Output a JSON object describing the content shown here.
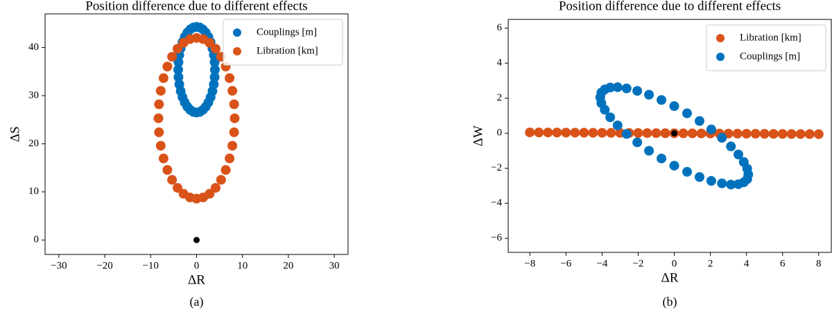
{
  "chart_data": [
    {
      "type": "scatter",
      "title": "Position difference due to different effects",
      "xlabel": "ΔR",
      "ylabel": "ΔS",
      "caption": "(a)",
      "xlim": [
        -33,
        33
      ],
      "ylim": [
        -3,
        47
      ],
      "xticks": [
        {
          "value": -30,
          "label": "−30"
        },
        {
          "value": -20,
          "label": "−20"
        },
        {
          "value": -10,
          "label": "−10"
        },
        0,
        10,
        20,
        30
      ],
      "yticks": [
        0,
        10,
        20,
        30,
        40
      ],
      "legend": "upper right",
      "series": [
        {
          "name": "Couplings [m]",
          "color": "#0072bd",
          "x": [
            4,
            3.94,
            3.76,
            3.46,
            3.06,
            2.57,
            2,
            1.37,
            0.7,
            0,
            -0.7,
            -1.37,
            -2,
            -2.57,
            -3.06,
            -3.46,
            -3.76,
            -3.94,
            -4,
            -3.94,
            -3.76,
            -3.46,
            -3.06,
            -2.57,
            -2,
            -1.37,
            -0.7,
            0,
            0.7,
            1.37,
            2,
            2.57,
            3.06,
            3.46,
            3.76,
            3.94
          ],
          "y": [
            35.4,
            36.95,
            38.44,
            39.85,
            41.12,
            42.22,
            43.11,
            43.77,
            44.17,
            44.3,
            44.17,
            43.77,
            43.11,
            42.22,
            41.12,
            39.85,
            38.44,
            36.95,
            35.4,
            33.85,
            32.36,
            30.95,
            29.68,
            28.58,
            27.69,
            27.03,
            26.63,
            26.5,
            26.63,
            27.03,
            27.69,
            28.58,
            29.68,
            30.95,
            32.36,
            33.85
          ]
        },
        {
          "name": "Libration [km]",
          "color": "#d95319",
          "x": [
            8.3,
            8.18,
            7.8,
            7.19,
            6.36,
            5.34,
            4.15,
            2.84,
            1.44,
            0,
            -1.44,
            -2.84,
            -4.15,
            -5.34,
            -6.36,
            -7.19,
            -7.8,
            -8.18,
            -8.3,
            -8.18,
            -7.8,
            -7.19,
            -6.36,
            -5.34,
            -4.15,
            -2.84,
            -1.44,
            0,
            1.44,
            2.84,
            4.15,
            5.34,
            6.36,
            7.19,
            7.8,
            8.18
          ],
          "y": [
            25.3,
            28.21,
            31.01,
            33.65,
            36.04,
            38.09,
            39.76,
            41,
            41.75,
            42,
            41.75,
            41,
            39.76,
            38.09,
            36.04,
            33.65,
            31.01,
            28.21,
            25.3,
            22.39,
            19.59,
            16.95,
            14.56,
            12.51,
            10.84,
            9.6,
            8.85,
            8.6,
            8.85,
            9.6,
            10.84,
            12.51,
            14.56,
            16.95,
            19.59,
            22.39
          ]
        }
      ],
      "markers": [
        {
          "x": 0,
          "y": 0,
          "color": "#000000"
        }
      ]
    },
    {
      "type": "scatter",
      "title": "Position difference due to different effects",
      "xlabel": "ΔR",
      "ylabel": "ΔW",
      "caption": "(b)",
      "xlim": [
        -9.2,
        8.7
      ],
      "ylim": [
        -6.8,
        6.5
      ],
      "xticks": [
        {
          "value": -8,
          "label": "−8"
        },
        {
          "value": -6,
          "label": "−6"
        },
        {
          "value": -4,
          "label": "−4"
        },
        {
          "value": -2,
          "label": "−2"
        },
        0,
        2,
        4,
        6,
        8
      ],
      "yticks": [
        {
          "value": -6,
          "label": "−6"
        },
        {
          "value": -4,
          "label": "−4"
        },
        {
          "value": -2,
          "label": "−2"
        },
        0,
        2,
        4,
        6
      ],
      "legend": "upper right",
      "series": [
        {
          "name": "Libration [km]",
          "color": "#d95319",
          "x": [
            -8,
            -7.5,
            -7,
            -6.5,
            -6,
            -5.5,
            -5,
            -4.5,
            -4,
            -3.5,
            -3,
            -2.5,
            -2,
            -1.5,
            -1,
            -0.5,
            0,
            0.5,
            1,
            1.5,
            2,
            2.5,
            3,
            3.5,
            4,
            4.5,
            5,
            5.5,
            6,
            6.5,
            7,
            7.5,
            8
          ],
          "y": [
            0.05,
            0.047,
            0.044,
            0.041,
            0.038,
            0.034,
            0.031,
            0.028,
            0.025,
            0.022,
            0.019,
            0.016,
            0.013,
            0.009,
            0.006,
            0.003,
            0,
            -0.003,
            -0.006,
            -0.009,
            -0.013,
            -0.016,
            -0.019,
            -0.022,
            -0.025,
            -0.028,
            -0.031,
            -0.034,
            -0.038,
            -0.041,
            -0.044,
            -0.047,
            -0.05
          ]
        },
        {
          "name": "Couplings [m]",
          "color": "#0072bd",
          "x": [
            4.1,
            4.04,
            3.85,
            3.55,
            3.14,
            2.64,
            2.05,
            1.4,
            0.71,
            0,
            -0.71,
            -1.4,
            -2.05,
            -2.64,
            -3.14,
            -3.55,
            -3.85,
            -4.04,
            -4.1,
            -4.04,
            -3.85,
            -3.55,
            -3.14,
            -2.64,
            -2.05,
            -1.4,
            -0.71,
            0,
            0.71,
            1.4,
            2.05,
            2.64,
            3.14,
            3.55,
            3.85,
            4.04
          ],
          "y": [
            -2.35,
            -2.02,
            -1.64,
            -1.21,
            -0.75,
            -0.26,
            0.22,
            0.7,
            1.14,
            1.55,
            1.9,
            2.2,
            2.42,
            2.56,
            2.63,
            2.61,
            2.5,
            2.32,
            2.05,
            1.72,
            1.34,
            0.91,
            0.45,
            -0.04,
            -0.52,
            -1,
            -1.44,
            -1.85,
            -2.2,
            -2.5,
            -2.72,
            -2.86,
            -2.93,
            -2.91,
            -2.8,
            -2.62
          ]
        }
      ],
      "markers": [
        {
          "x": 0,
          "y": 0,
          "color": "#000000"
        }
      ]
    }
  ]
}
